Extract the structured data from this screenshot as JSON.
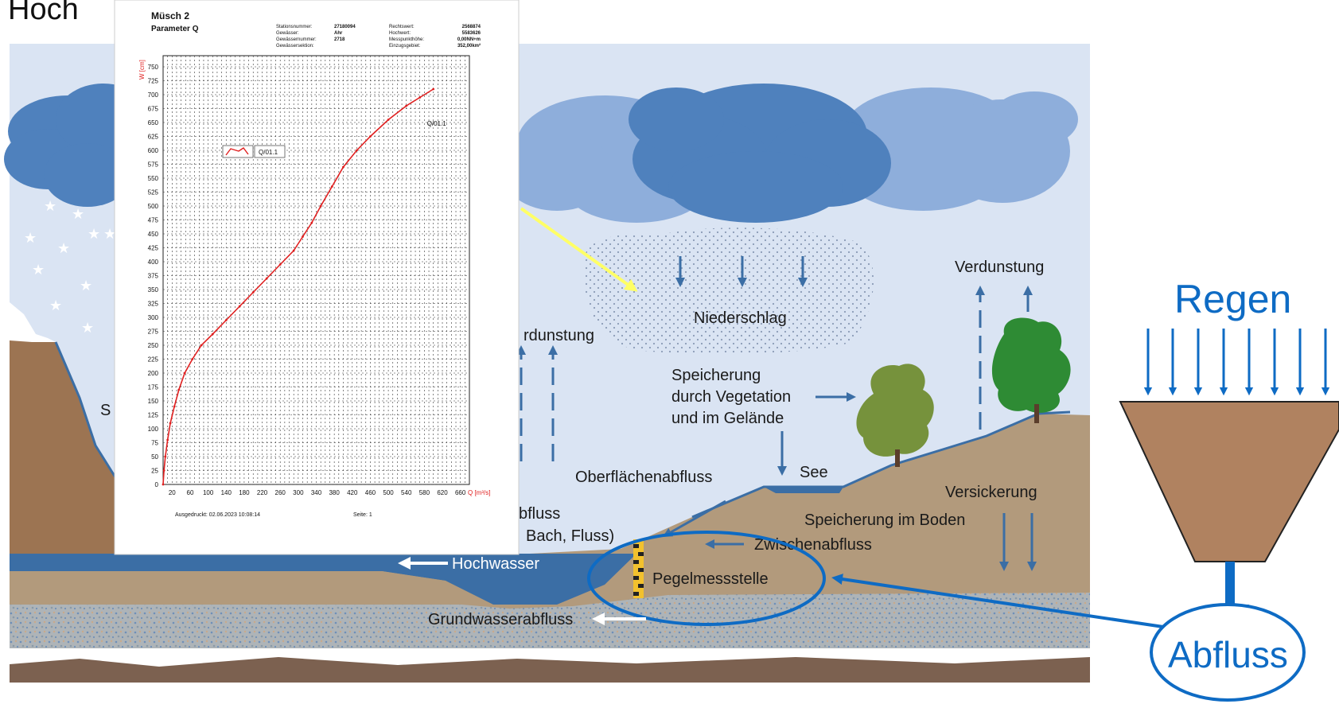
{
  "slide_title_fragment": "Hoch",
  "hydro_cycle": {
    "labels": {
      "niederschlag": "Niederschlag",
      "verdunstung_right": "Verdunstung",
      "verdunstung_left": "rdunstung",
      "speicherung_veg_1": "Speicherung",
      "speicherung_veg_2": "durch Vegetation",
      "speicherung_veg_3": "und im Gelände",
      "see": "See",
      "oberflaechenabfluss": "Oberflächenabfluss",
      "versickerung": "Versickerung",
      "speicherung_boden": "Speicherung im Boden",
      "zwischenabfluss": "Zwischenabfluss",
      "abfluss_fragment": "bfluss",
      "bach_fluss_fragment": "Bach, Fluss)",
      "hochwasser": "Hochwasser",
      "pegelmessstelle": "Pegelmessstelle",
      "grundwasserabfluss": "Grundwasserabfluss",
      "left_fragment": "S"
    },
    "colors": {
      "sky": "#dae4f3",
      "cloud_dark": "#4f81bd",
      "cloud_light": "#8eaedb",
      "ground": "#b29a7c",
      "water": "#3b6ea5",
      "groundwater": "#b8b0a6",
      "bedrock": "#7c6150",
      "tree_light": "#76923c",
      "tree_dark": "#2e8b34",
      "arrow": "#3b6ea5",
      "highlight_blue": "#0e6bc4",
      "yellow_arrow": "#ffff66"
    }
  },
  "funnel": {
    "regen": "Regen",
    "abfluss": "Abfluss",
    "color_funnel": "#b08260"
  },
  "rating_sheet": {
    "station": "Müsch 2",
    "parameter": "Parameter Q",
    "meta_left": [
      {
        "key": "Stationsnummer:",
        "value": "27180094"
      },
      {
        "key": "Gewässer:",
        "value": "Ahr"
      },
      {
        "key": "Gewässernummer:",
        "value": "2718"
      },
      {
        "key": "Gewässersektion:",
        "value": ""
      }
    ],
    "meta_right": [
      {
        "key": "Rechtswert:",
        "value": "2568874"
      },
      {
        "key": "Hochwert:",
        "value": "5583626"
      },
      {
        "key": "Messpunkthöhe:",
        "value": "0,00NN+m"
      },
      {
        "key": "Einzugsgebiet:",
        "value": "352,00km²"
      }
    ],
    "footer_left": "Ausgedruckt: 02.06.2023 10:08:14",
    "footer_right": "Seite: 1"
  },
  "chart_data": {
    "type": "line",
    "title": "",
    "xlabel": "Q [m³/s]",
    "ylabel": "W [cm]",
    "xlim": [
      0,
      680
    ],
    "ylim": [
      0,
      770
    ],
    "x_ticks": [
      20,
      60,
      100,
      140,
      180,
      220,
      260,
      300,
      340,
      380,
      420,
      460,
      500,
      540,
      580,
      620,
      660
    ],
    "y_ticks": [
      0,
      25,
      50,
      75,
      100,
      125,
      150,
      175,
      200,
      225,
      250,
      275,
      300,
      325,
      350,
      375,
      400,
      425,
      450,
      475,
      500,
      525,
      550,
      575,
      600,
      625,
      650,
      675,
      700,
      725,
      750
    ],
    "grid": true,
    "legend": "top-left",
    "series": [
      {
        "name": "Q/01.1",
        "x": [
          0,
          2,
          5,
          10,
          16,
          25,
          35,
          48,
          65,
          85,
          110,
          140,
          170,
          200,
          230,
          260,
          290,
          310,
          330,
          350,
          375,
          400,
          430,
          460,
          500,
          540,
          570,
          600
        ],
        "y": [
          0,
          25,
          50,
          80,
          110,
          140,
          170,
          200,
          225,
          250,
          270,
          295,
          320,
          345,
          370,
          395,
          420,
          445,
          470,
          500,
          535,
          570,
          600,
          625,
          655,
          680,
          695,
          710
        ]
      }
    ]
  }
}
